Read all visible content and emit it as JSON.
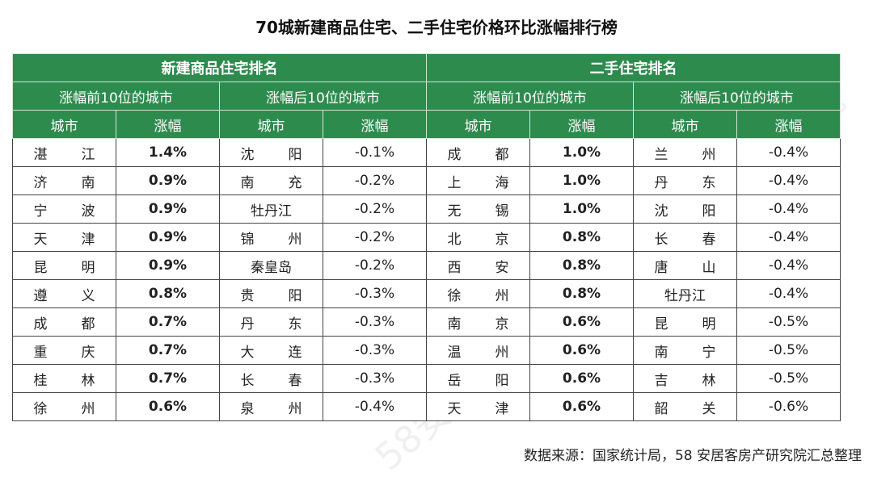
{
  "title": "70城新建商品住宅、二手住宅价格环比涨幅排行榜",
  "groups": {
    "new": "新建商品住宅排名",
    "second": "二手住宅排名"
  },
  "subgroups": {
    "top": "涨幅前10位的城市",
    "bottom": "涨幅后10位的城市"
  },
  "col_city": "城市",
  "col_change": "涨幅",
  "new_top": [
    {
      "city": "湛江",
      "change": "1.4%"
    },
    {
      "city": "济南",
      "change": "0.9%"
    },
    {
      "city": "宁波",
      "change": "0.9%"
    },
    {
      "city": "天津",
      "change": "0.9%"
    },
    {
      "city": "昆明",
      "change": "0.9%"
    },
    {
      "city": "遵义",
      "change": "0.8%"
    },
    {
      "city": "成都",
      "change": "0.7%"
    },
    {
      "city": "重庆",
      "change": "0.7%"
    },
    {
      "city": "桂林",
      "change": "0.7%"
    },
    {
      "city": "徐州",
      "change": "0.6%"
    }
  ],
  "new_bottom": [
    {
      "city": "沈阳",
      "change": "-0.1%"
    },
    {
      "city": "南充",
      "change": "-0.2%"
    },
    {
      "city": "牡丹江",
      "change": "-0.2%"
    },
    {
      "city": "锦州",
      "change": "-0.2%"
    },
    {
      "city": "秦皇岛",
      "change": "-0.2%"
    },
    {
      "city": "贵阳",
      "change": "-0.3%"
    },
    {
      "city": "丹东",
      "change": "-0.3%"
    },
    {
      "city": "大连",
      "change": "-0.3%"
    },
    {
      "city": "长春",
      "change": "-0.3%"
    },
    {
      "city": "泉州",
      "change": "-0.4%"
    }
  ],
  "second_top": [
    {
      "city": "成都",
      "change": "1.0%"
    },
    {
      "city": "上海",
      "change": "1.0%"
    },
    {
      "city": "无锡",
      "change": "1.0%"
    },
    {
      "city": "北京",
      "change": "0.8%"
    },
    {
      "city": "西安",
      "change": "0.8%"
    },
    {
      "city": "徐州",
      "change": "0.8%"
    },
    {
      "city": "南京",
      "change": "0.6%"
    },
    {
      "city": "温州",
      "change": "0.6%"
    },
    {
      "city": "岳阳",
      "change": "0.6%"
    },
    {
      "city": "天津",
      "change": "0.6%"
    }
  ],
  "second_bottom": [
    {
      "city": "兰州",
      "change": "-0.4%"
    },
    {
      "city": "丹东",
      "change": "-0.4%"
    },
    {
      "city": "沈阳",
      "change": "-0.4%"
    },
    {
      "city": "长春",
      "change": "-0.4%"
    },
    {
      "city": "唐山",
      "change": "-0.4%"
    },
    {
      "city": "牡丹江",
      "change": "-0.4%"
    },
    {
      "city": "昆明",
      "change": "-0.5%"
    },
    {
      "city": "南宁",
      "change": "-0.5%"
    },
    {
      "city": "吉林",
      "change": "-0.5%"
    },
    {
      "city": "韶关",
      "change": "-0.6%"
    }
  ],
  "source": "数据来源：国家统计局，58 安居客房产研究院汇总整理",
  "watermark": "58安居客研究院",
  "colors": {
    "header_green": "#2e8b4e",
    "up_red": "#e0171f"
  }
}
